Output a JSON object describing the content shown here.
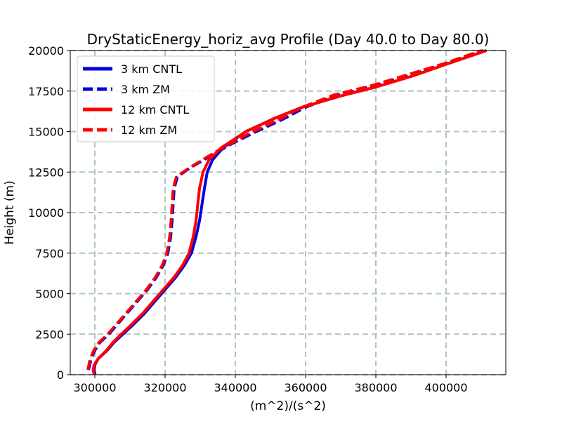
{
  "chart_data": {
    "type": "line",
    "title": "DryStaticEnergy_horiz_avg Profile (Day 40.0 to Day 80.0)",
    "xlabel": "(m^2)/(s^2)",
    "ylabel": "Height (m)",
    "xlim": [
      293000,
      417000
    ],
    "ylim": [
      0,
      20000
    ],
    "xticks": [
      300000,
      320000,
      340000,
      360000,
      380000,
      400000
    ],
    "yticks": [
      0,
      2500,
      5000,
      7500,
      10000,
      12500,
      15000,
      17500,
      20000
    ],
    "grid": true,
    "legend_position": "top-left",
    "series": [
      {
        "name": "3 km CNTL",
        "color": "#0000dd",
        "style": "solid",
        "points": [
          [
            300100,
            0
          ],
          [
            299800,
            300
          ],
          [
            300000,
            600
          ],
          [
            301000,
            1000
          ],
          [
            303500,
            1500
          ],
          [
            305500,
            2000
          ],
          [
            308000,
            2500
          ],
          [
            310500,
            3000
          ],
          [
            314000,
            3750
          ],
          [
            317000,
            4500
          ],
          [
            320000,
            5250
          ],
          [
            323000,
            6000
          ],
          [
            325500,
            6750
          ],
          [
            327500,
            7500
          ],
          [
            328800,
            8500
          ],
          [
            329800,
            9500
          ],
          [
            330500,
            10500
          ],
          [
            331200,
            11500
          ],
          [
            332000,
            12500
          ],
          [
            333500,
            13250
          ],
          [
            336500,
            14000
          ],
          [
            343000,
            15000
          ],
          [
            351000,
            15800
          ],
          [
            359000,
            16500
          ],
          [
            370000,
            17200
          ],
          [
            380000,
            17750
          ],
          [
            390000,
            18400
          ],
          [
            400000,
            19150
          ],
          [
            411500,
            20000
          ]
        ]
      },
      {
        "name": "3 km ZM",
        "color": "#0000dd",
        "style": "dashed",
        "points": [
          [
            298200,
            300
          ],
          [
            299000,
            1000
          ],
          [
            300000,
            1500
          ],
          [
            301500,
            2000
          ],
          [
            304000,
            2500
          ],
          [
            306000,
            3000
          ],
          [
            309000,
            3750
          ],
          [
            312000,
            4500
          ],
          [
            315000,
            5250
          ],
          [
            317500,
            6000
          ],
          [
            319500,
            6750
          ],
          [
            320800,
            7500
          ],
          [
            321600,
            8500
          ],
          [
            322000,
            9500
          ],
          [
            322300,
            10500
          ],
          [
            322600,
            11500
          ],
          [
            323500,
            12200
          ],
          [
            327000,
            12750
          ],
          [
            333000,
            13500
          ],
          [
            339000,
            14250
          ],
          [
            346000,
            15000
          ],
          [
            353000,
            15700
          ],
          [
            360000,
            16500
          ],
          [
            369000,
            17250
          ],
          [
            380000,
            17850
          ],
          [
            390000,
            18500
          ],
          [
            400000,
            19200
          ],
          [
            410500,
            20000
          ]
        ]
      },
      {
        "name": "12 km CNTL",
        "color": "#ff0000",
        "style": "solid",
        "points": [
          [
            299800,
            0
          ],
          [
            299500,
            300
          ],
          [
            299800,
            600
          ],
          [
            301000,
            1000
          ],
          [
            303300,
            1500
          ],
          [
            305200,
            2000
          ],
          [
            307500,
            2500
          ],
          [
            310000,
            3000
          ],
          [
            313500,
            3750
          ],
          [
            316500,
            4500
          ],
          [
            319500,
            5250
          ],
          [
            322500,
            6000
          ],
          [
            325000,
            6750
          ],
          [
            326800,
            7500
          ],
          [
            328000,
            8500
          ],
          [
            328800,
            9500
          ],
          [
            329300,
            10500
          ],
          [
            329800,
            11500
          ],
          [
            330800,
            12500
          ],
          [
            332500,
            13250
          ],
          [
            336000,
            14000
          ],
          [
            343000,
            15000
          ],
          [
            351000,
            15800
          ],
          [
            359000,
            16500
          ],
          [
            370000,
            17200
          ],
          [
            380000,
            17750
          ],
          [
            390000,
            18400
          ],
          [
            400000,
            19150
          ],
          [
            411500,
            20000
          ]
        ]
      },
      {
        "name": "12 km ZM",
        "color": "#ff0000",
        "style": "dashed",
        "points": [
          [
            298000,
            300
          ],
          [
            298700,
            1000
          ],
          [
            299700,
            1500
          ],
          [
            301200,
            2000
          ],
          [
            303700,
            2500
          ],
          [
            305700,
            3000
          ],
          [
            308700,
            3750
          ],
          [
            311700,
            4500
          ],
          [
            314700,
            5250
          ],
          [
            317200,
            6000
          ],
          [
            319200,
            6750
          ],
          [
            320500,
            7500
          ],
          [
            321300,
            8500
          ],
          [
            321700,
            9500
          ],
          [
            322000,
            10500
          ],
          [
            322300,
            11500
          ],
          [
            323200,
            12200
          ],
          [
            326800,
            12750
          ],
          [
            332500,
            13500
          ],
          [
            338500,
            14250
          ],
          [
            345000,
            15000
          ],
          [
            352000,
            15700
          ],
          [
            359000,
            16500
          ],
          [
            368000,
            17250
          ],
          [
            379000,
            17850
          ],
          [
            389000,
            18500
          ],
          [
            399500,
            19200
          ],
          [
            410000,
            20000
          ]
        ]
      }
    ]
  }
}
